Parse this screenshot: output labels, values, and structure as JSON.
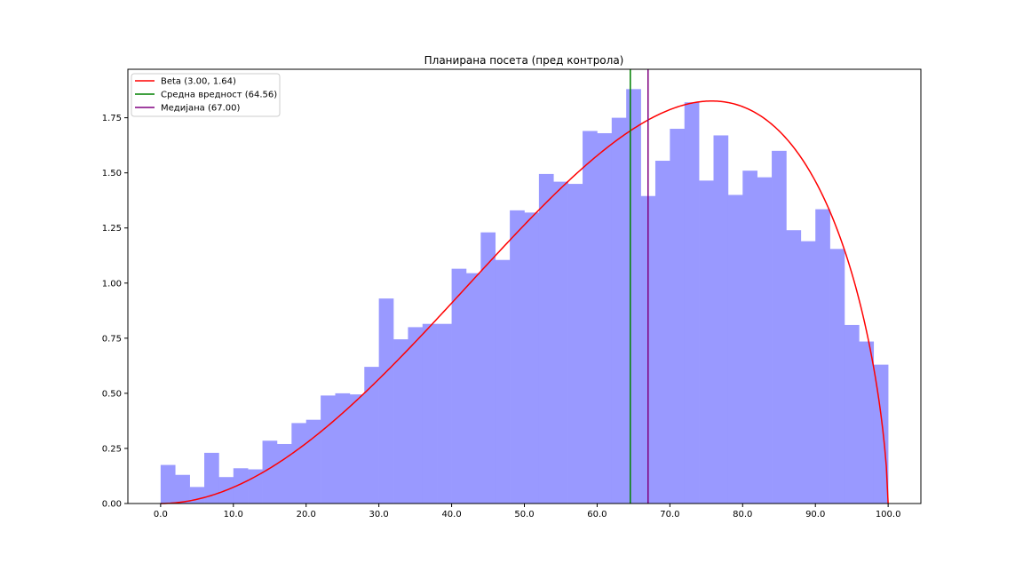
{
  "chart_data": {
    "type": "bar",
    "title": "Планирана посета (пред контрола)",
    "xlabel": "",
    "ylabel": "",
    "xlim": [
      -4.5,
      104.5
    ],
    "ylim": [
      0,
      1.97
    ],
    "xticks": [
      0,
      10,
      20,
      30,
      40,
      50,
      60,
      70,
      80,
      90,
      100
    ],
    "xtick_labels": [
      "0.0",
      "10.0",
      "20.0",
      "30.0",
      "40.0",
      "50.0",
      "60.0",
      "70.0",
      "80.0",
      "90.0",
      "100.0"
    ],
    "yticks": [
      0,
      0.25,
      0.5,
      0.75,
      1.0,
      1.25,
      1.5,
      1.75
    ],
    "ytick_labels": [
      "0.00",
      "0.25",
      "0.50",
      "0.75",
      "1.00",
      "1.25",
      "1.50",
      "1.75"
    ],
    "grid": false,
    "legend_position": "upper-left",
    "histogram": {
      "color": "#9999ff",
      "bin_width": 2,
      "bin_starts": [
        0,
        2,
        4,
        6,
        8,
        10,
        12,
        14,
        16,
        18,
        20,
        22,
        24,
        26,
        28,
        30,
        32,
        34,
        36,
        38,
        40,
        42,
        44,
        46,
        48,
        50,
        52,
        54,
        56,
        58,
        60,
        62,
        64,
        66,
        68,
        70,
        72,
        74,
        76,
        78,
        80,
        82,
        84,
        86,
        88,
        90,
        92,
        94,
        96,
        98
      ],
      "values": [
        0.175,
        0.13,
        0.075,
        0.23,
        0.12,
        0.16,
        0.155,
        0.285,
        0.27,
        0.365,
        0.38,
        0.49,
        0.5,
        0.495,
        0.62,
        0.93,
        0.745,
        0.8,
        0.815,
        0.815,
        1.065,
        1.045,
        1.23,
        1.105,
        1.33,
        1.32,
        1.495,
        1.46,
        1.45,
        1.69,
        1.68,
        1.75,
        1.88,
        1.395,
        1.555,
        1.7,
        1.82,
        1.465,
        1.67,
        1.4,
        1.51,
        1.48,
        1.6,
        1.24,
        1.19,
        1.335,
        1.155,
        0.81,
        0.735,
        0.63
      ]
    },
    "series": [
      {
        "name": "Beta (3.00, 1.64)",
        "kind": "beta-pdf",
        "alpha": 3.0,
        "beta": 1.64,
        "scale": 100,
        "color": "#ff0000"
      },
      {
        "name": "Средна вредност (64.56)",
        "kind": "vline",
        "x": 64.56,
        "color": "#008000"
      },
      {
        "name": "Медијана (67.00)",
        "kind": "vline",
        "x": 67.0,
        "color": "#800080"
      }
    ]
  }
}
